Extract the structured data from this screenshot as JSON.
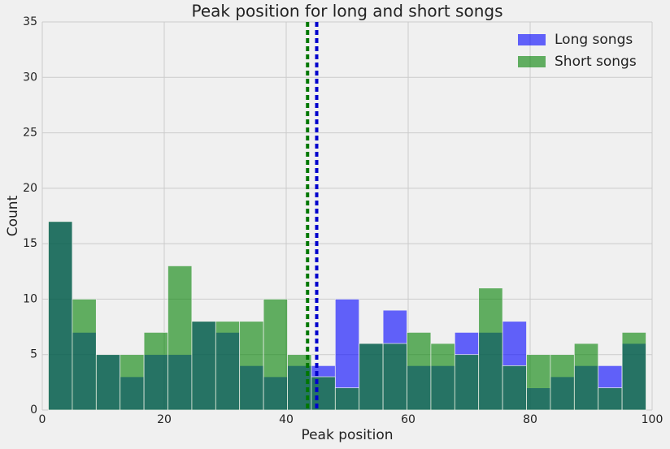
{
  "chart_data": {
    "type": "histogram",
    "title": "Peak position for long and short songs",
    "x_label": "Peak position",
    "y_label": "Count",
    "bins": [
      1,
      4.92,
      8.84,
      12.76,
      16.68,
      20.6,
      24.52,
      28.44,
      32.36,
      36.28,
      40.2,
      44.12,
      48.04,
      51.96,
      55.88,
      59.8,
      63.72,
      67.64,
      71.56,
      75.48,
      79.4,
      83.32,
      87.24,
      91.16,
      95.08,
      99
    ],
    "series": [
      {
        "name": "Long songs",
        "color": "#0000ff",
        "values": [
          17,
          7,
          5,
          3,
          5,
          5,
          8,
          7,
          4,
          3,
          4,
          4,
          10,
          6,
          9,
          4,
          4,
          7,
          7,
          8,
          2,
          3,
          4,
          4,
          6
        ]
      },
      {
        "name": "Short songs",
        "color": "#008000",
        "values": [
          17,
          10,
          5,
          5,
          7,
          13,
          8,
          8,
          8,
          10,
          5,
          3,
          2,
          6,
          6,
          7,
          6,
          5,
          11,
          4,
          5,
          5,
          6,
          2,
          7
        ]
      }
    ],
    "mean_lines": [
      {
        "value": 45.0,
        "color": "#0000cc"
      },
      {
        "value": 43.5,
        "color": "#007700"
      }
    ],
    "xlim": [
      0,
      100
    ],
    "xticks": [
      0,
      20,
      40,
      60,
      80,
      100
    ],
    "ylim": [
      0,
      35
    ],
    "yticks": [
      0,
      5,
      10,
      15,
      20,
      25,
      30,
      35
    ],
    "grid": true,
    "legend": "upper right"
  }
}
